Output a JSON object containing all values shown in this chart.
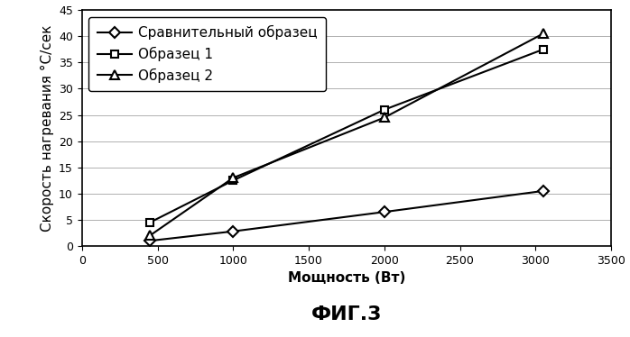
{
  "series": [
    {
      "label": "Сравнительный образец",
      "x": [
        450,
        1000,
        2000,
        3050
      ],
      "y": [
        1.0,
        2.8,
        6.5,
        10.5
      ],
      "marker": "D",
      "markersize": 6,
      "linewidth": 1.5,
      "color": "#000000"
    },
    {
      "label": "Образец 1",
      "x": [
        450,
        1000,
        2000,
        3050
      ],
      "y": [
        4.5,
        12.5,
        26.0,
        37.5
      ],
      "marker": "s",
      "markersize": 6,
      "linewidth": 1.5,
      "color": "#000000"
    },
    {
      "label": "Образец 2",
      "x": [
        450,
        1000,
        2000,
        3050
      ],
      "y": [
        2.0,
        13.0,
        24.5,
        40.5
      ],
      "marker": "^",
      "markersize": 7,
      "linewidth": 1.5,
      "color": "#000000"
    }
  ],
  "xlabel": "Мощность (Вт)",
  "ylabel": "Скорость нагревания °C/сек",
  "title": "ФИГ.3",
  "xlim": [
    0,
    3400
  ],
  "ylim": [
    0,
    45
  ],
  "xticks": [
    0,
    500,
    1000,
    1500,
    2000,
    2500,
    3000,
    3500
  ],
  "yticks": [
    0,
    5,
    10,
    15,
    20,
    25,
    30,
    35,
    40,
    45
  ],
  "background_color": "#ffffff",
  "legend_fontsize": 11,
  "axis_label_fontsize": 11,
  "tick_fontsize": 9,
  "title_fontsize": 16
}
